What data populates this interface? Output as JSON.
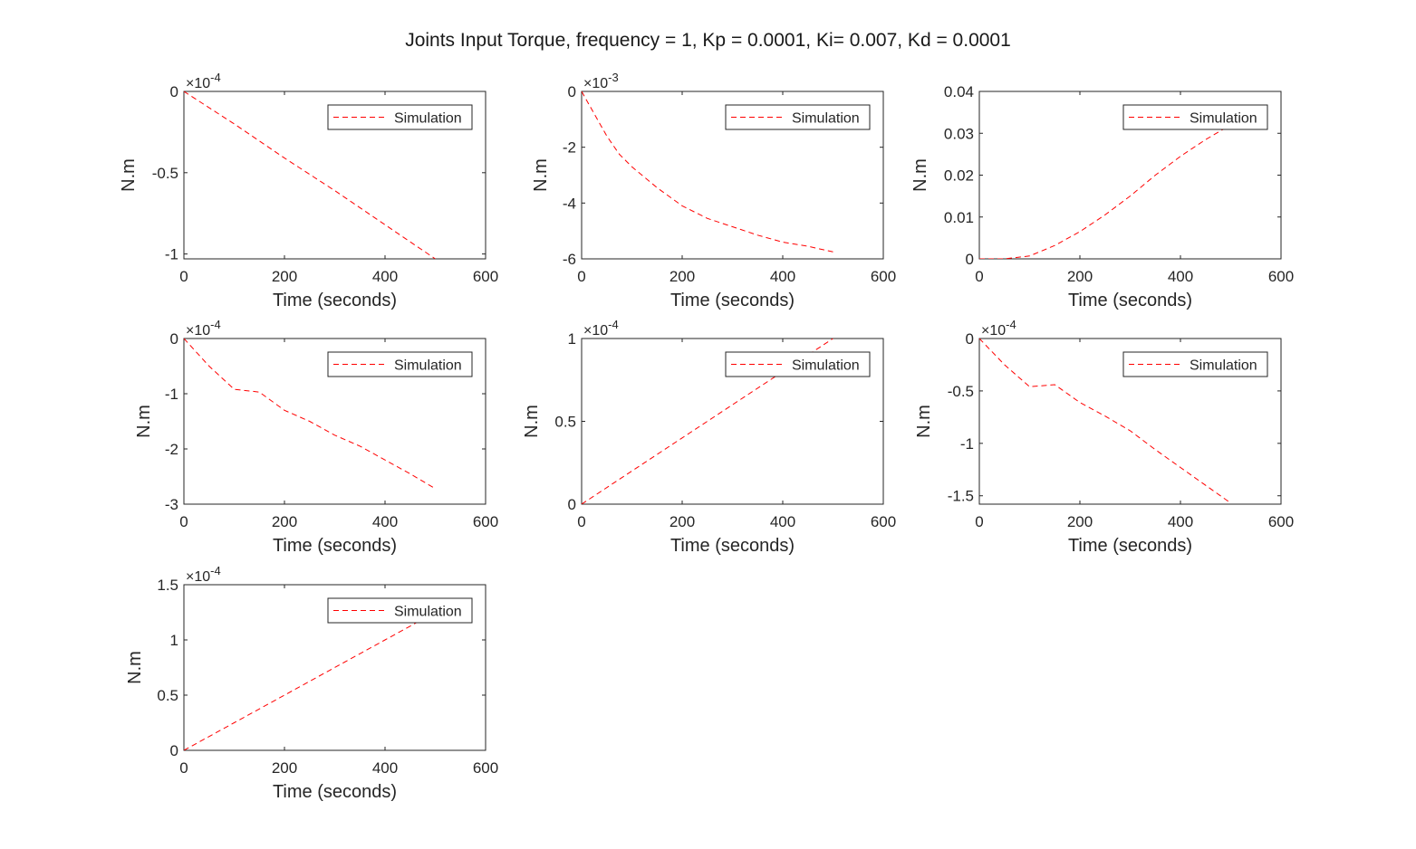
{
  "figure": {
    "title": "Joints Input Torque, frequency = 1, Kp = 0.0001, Ki= 0.007, Kd = 0.0001"
  },
  "colors": {
    "series": "#ff0000",
    "axes": "#262626",
    "background": "#ffffff"
  },
  "chart_data": [
    {
      "type": "line",
      "xlabel": "Time (seconds)",
      "ylabel": "N.m",
      "exponent_label": "×10^-4",
      "xlim": [
        0,
        600
      ],
      "ylim": [
        -1.03,
        0
      ],
      "xticks": [
        0,
        200,
        400,
        600
      ],
      "yticks": [
        -1,
        -0.5,
        0
      ],
      "ytick_labels": [
        "-1",
        "-0.5",
        "0"
      ],
      "legend_position": "top-right",
      "grid": false,
      "series": [
        {
          "name": "Simulation",
          "style": "dashed",
          "x": [
            0,
            100,
            200,
            300,
            400,
            500
          ],
          "y": [
            0,
            -0.2,
            -0.41,
            -0.61,
            -0.82,
            -1.03
          ]
        }
      ]
    },
    {
      "type": "line",
      "xlabel": "Time (seconds)",
      "ylabel": "N.m",
      "exponent_label": "×10^-3",
      "xlim": [
        0,
        600
      ],
      "ylim": [
        -6,
        0
      ],
      "xticks": [
        0,
        200,
        400,
        600
      ],
      "yticks": [
        -6,
        -4,
        -2,
        0
      ],
      "ytick_labels": [
        "-6",
        "-4",
        "-2",
        "0"
      ],
      "legend_position": "top-right",
      "grid": false,
      "series": [
        {
          "name": "Simulation",
          "style": "dashed",
          "x": [
            0,
            25,
            50,
            75,
            100,
            150,
            200,
            250,
            300,
            350,
            400,
            450,
            500
          ],
          "y": [
            0,
            -0.8,
            -1.6,
            -2.25,
            -2.7,
            -3.45,
            -4.1,
            -4.55,
            -4.85,
            -5.15,
            -5.4,
            -5.55,
            -5.75
          ]
        }
      ]
    },
    {
      "type": "line",
      "xlabel": "Time (seconds)",
      "ylabel": "N.m",
      "exponent_label": "",
      "xlim": [
        0,
        600
      ],
      "ylim": [
        0,
        0.04
      ],
      "xticks": [
        0,
        200,
        400,
        600
      ],
      "yticks": [
        0,
        0.01,
        0.02,
        0.03,
        0.04
      ],
      "ytick_labels": [
        "0",
        "0.01",
        "0.02",
        "0.03",
        "0.04"
      ],
      "legend_position": "top-right",
      "grid": false,
      "series": [
        {
          "name": "Simulation",
          "style": "dashed",
          "x": [
            0,
            50,
            100,
            150,
            200,
            250,
            300,
            350,
            400,
            450,
            500
          ],
          "y": [
            0,
            0,
            0.0007,
            0.0032,
            0.0065,
            0.0105,
            0.015,
            0.02,
            0.0245,
            0.0285,
            0.032
          ]
        }
      ]
    },
    {
      "type": "line",
      "xlabel": "Time (seconds)",
      "ylabel": "N.m",
      "exponent_label": "×10^-4",
      "xlim": [
        0,
        600
      ],
      "ylim": [
        -3,
        0
      ],
      "xticks": [
        0,
        200,
        400,
        600
      ],
      "yticks": [
        -3,
        -2,
        -1,
        0
      ],
      "ytick_labels": [
        "-3",
        "-2",
        "-1",
        "0"
      ],
      "legend_position": "top-right",
      "grid": false,
      "series": [
        {
          "name": "Simulation",
          "style": "dashed",
          "x": [
            0,
            50,
            100,
            150,
            200,
            250,
            300,
            350,
            400,
            450,
            500
          ],
          "y": [
            0,
            -0.5,
            -0.92,
            -0.97,
            -1.3,
            -1.5,
            -1.75,
            -1.95,
            -2.2,
            -2.45,
            -2.72
          ]
        }
      ]
    },
    {
      "type": "line",
      "xlabel": "Time (seconds)",
      "ylabel": "N.m",
      "exponent_label": "×10^-4",
      "xlim": [
        0,
        600
      ],
      "ylim": [
        0,
        1
      ],
      "xticks": [
        0,
        200,
        400,
        600
      ],
      "yticks": [
        0,
        0.5,
        1
      ],
      "ytick_labels": [
        "0",
        "0.5",
        "1"
      ],
      "legend_position": "top-right",
      "grid": false,
      "series": [
        {
          "name": "Simulation",
          "style": "dashed",
          "x": [
            0,
            100,
            200,
            300,
            400,
            500
          ],
          "y": [
            0,
            0.2,
            0.4,
            0.6,
            0.8,
            1.0
          ]
        }
      ]
    },
    {
      "type": "line",
      "xlabel": "Time (seconds)",
      "ylabel": "N.m",
      "exponent_label": "×10^-4",
      "xlim": [
        0,
        600
      ],
      "ylim": [
        -1.58,
        0
      ],
      "xticks": [
        0,
        200,
        400,
        600
      ],
      "yticks": [
        -1.5,
        -1,
        -0.5,
        0
      ],
      "ytick_labels": [
        "-1.5",
        "-1",
        "-0.5",
        "0"
      ],
      "legend_position": "top-right",
      "grid": false,
      "series": [
        {
          "name": "Simulation",
          "style": "dashed",
          "x": [
            0,
            50,
            100,
            150,
            200,
            250,
            300,
            350,
            400,
            450,
            500
          ],
          "y": [
            0,
            -0.25,
            -0.46,
            -0.44,
            -0.61,
            -0.74,
            -0.88,
            -1.06,
            -1.23,
            -1.4,
            -1.57
          ]
        }
      ]
    },
    {
      "type": "line",
      "xlabel": "Time (seconds)",
      "ylabel": "N.m",
      "exponent_label": "×10^-4",
      "xlim": [
        0,
        600
      ],
      "ylim": [
        0,
        1.5
      ],
      "xticks": [
        0,
        200,
        400,
        600
      ],
      "yticks": [
        0,
        0.5,
        1,
        1.5
      ],
      "ytick_labels": [
        "0",
        "0.5",
        "1",
        "1.5"
      ],
      "legend_position": "top-right",
      "grid": false,
      "series": [
        {
          "name": "Simulation",
          "style": "dashed",
          "x": [
            0,
            100,
            200,
            300,
            400,
            500
          ],
          "y": [
            0,
            0.25,
            0.5,
            0.75,
            1.0,
            1.25
          ]
        }
      ]
    }
  ]
}
